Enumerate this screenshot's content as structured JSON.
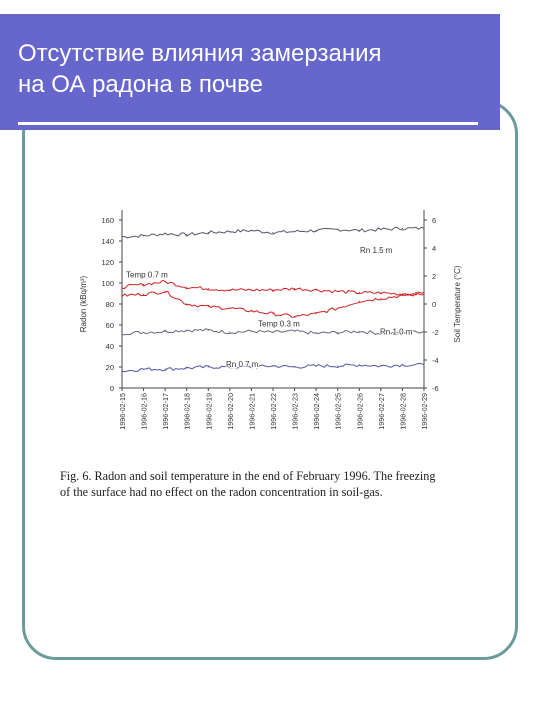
{
  "slide": {
    "title_line1": "Отсутствие влияния замерзания",
    "title_line2": "на ОА радона в почве",
    "colors": {
      "header": "#6666cc",
      "frame": "#6a9a9a"
    }
  },
  "chart_data": {
    "type": "line",
    "ylabel": "Radon (kBq/m³)",
    "ylabel_right": "Soil Temperature (°C)",
    "ylim": [
      0,
      160
    ],
    "ylim_right": [
      -6,
      6
    ],
    "yticks": [
      0,
      20,
      40,
      60,
      80,
      100,
      120,
      140,
      160
    ],
    "yticks_right": [
      -6,
      -4,
      -2,
      0,
      2,
      4,
      6
    ],
    "categories": [
      "1996-02-15",
      "1996-02-16",
      "1996-02-17",
      "1996-02-18",
      "1996-02-19",
      "1996-02-20",
      "1996-02-21",
      "1996-02-22",
      "1996-02-23",
      "1996-02-24",
      "1996-02-25",
      "1996-02-26",
      "1996-02-27",
      "1996-02-28",
      "1996-02-29"
    ],
    "grid": false,
    "series": [
      {
        "name": "Rn 1.5 m",
        "axis": "left",
        "color": "#555577",
        "values": [
          144,
          145,
          147,
          146,
          148,
          149,
          150,
          148,
          149,
          150,
          151,
          150,
          151,
          152,
          152
        ]
      },
      {
        "name": "Rn 1.0 m",
        "axis": "left",
        "color": "#666688",
        "values": [
          52,
          53,
          54,
          55,
          55,
          53,
          54,
          53,
          54,
          52,
          53,
          54,
          52,
          53,
          54
        ]
      },
      {
        "name": "Rn 0.7 m",
        "axis": "left",
        "color": "#5555aa",
        "values": [
          16,
          18,
          18,
          19,
          20,
          20,
          20,
          21,
          20,
          21,
          21,
          22,
          21,
          22,
          22
        ]
      },
      {
        "name": "Temp 0.7 m",
        "axis": "right",
        "color": "#cc2222",
        "values": [
          1.2,
          1.4,
          1.6,
          1.2,
          1.1,
          1.0,
          1.0,
          1.0,
          1.1,
          1.0,
          0.9,
          0.8,
          0.8,
          0.7,
          0.7
        ]
      },
      {
        "name": "Temp 0.3 m",
        "axis": "right",
        "color": "#cc2222",
        "values": [
          0.6,
          0.7,
          0.9,
          0.0,
          -0.2,
          -0.3,
          -0.5,
          -0.7,
          -0.9,
          -0.7,
          -0.3,
          0.2,
          0.4,
          0.6,
          0.8
        ]
      }
    ],
    "annotations": [
      "Rn 1.5 m",
      "Temp 0.7 m",
      "Temp 0.3 m",
      "Rn 1.0 m",
      "Rn 0.7 m"
    ]
  },
  "caption": {
    "line1": "Fig. 6. Radon and soil temperature in the end of February 1996. The freezing",
    "line2": "of the surface had no effect on the radon concentration in soil-gas."
  }
}
